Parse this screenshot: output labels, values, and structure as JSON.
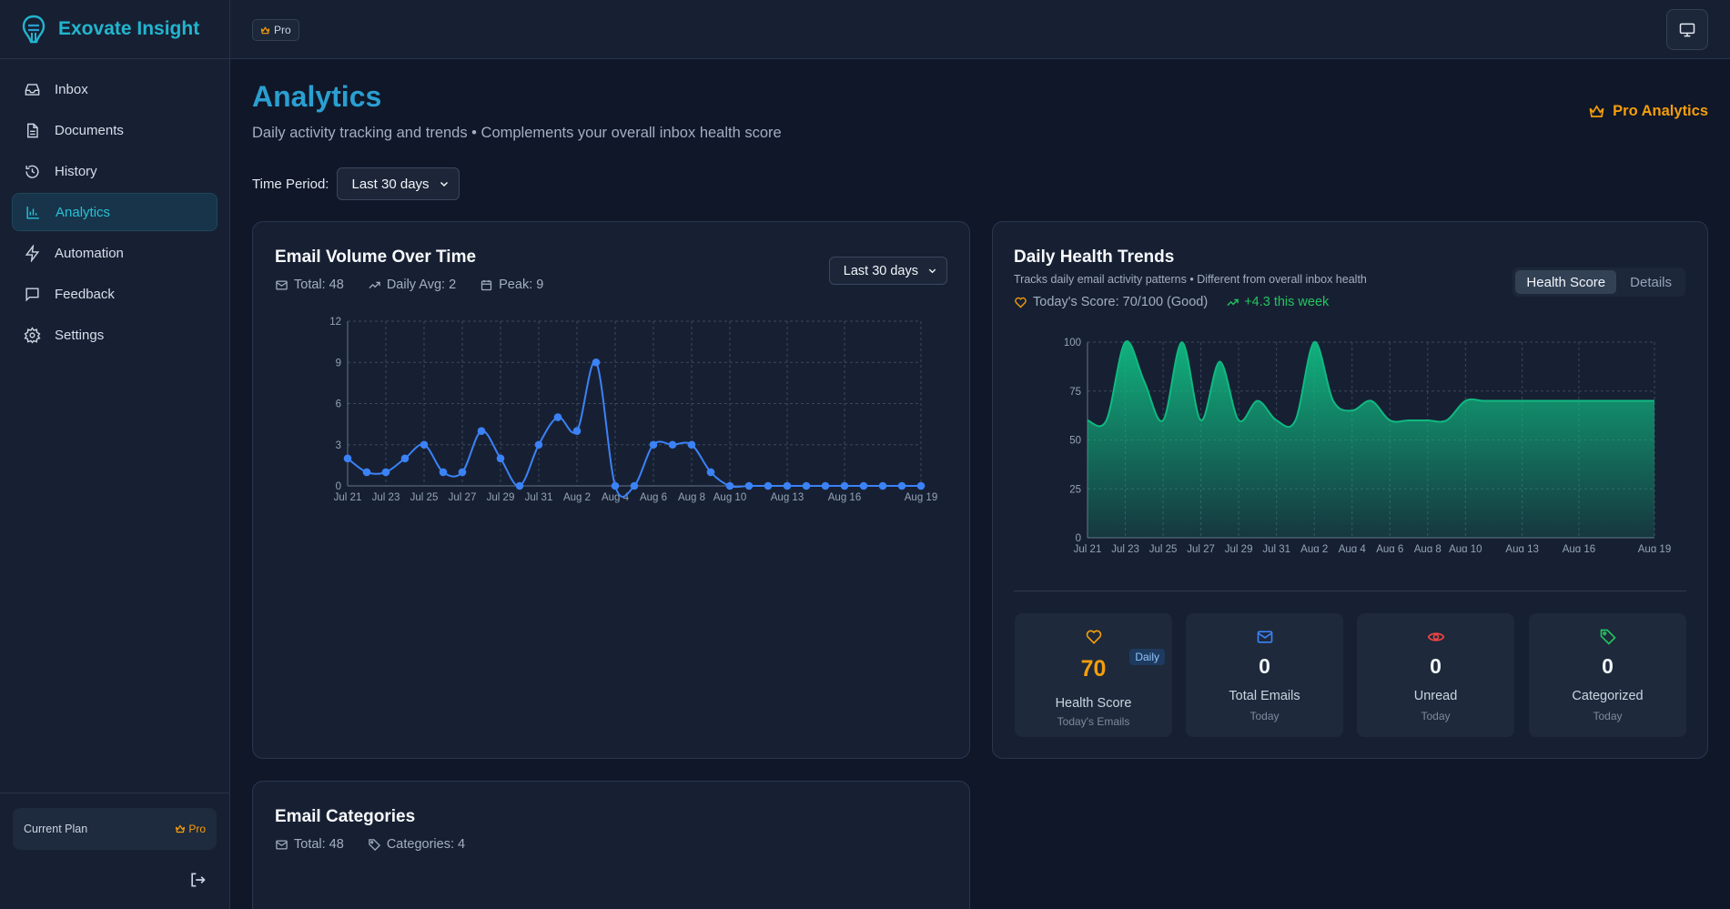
{
  "app": {
    "name": "Exovate Insight"
  },
  "sidebar": {
    "items": [
      {
        "label": "Inbox",
        "icon": "inbox-icon"
      },
      {
        "label": "Documents",
        "icon": "document-icon"
      },
      {
        "label": "History",
        "icon": "history-icon"
      },
      {
        "label": "Analytics",
        "icon": "bar-chart-icon",
        "active": true
      },
      {
        "label": "Automation",
        "icon": "lightning-icon"
      },
      {
        "label": "Feedback",
        "icon": "message-icon"
      },
      {
        "label": "Settings",
        "icon": "gear-icon"
      }
    ],
    "plan_label": "Current Plan",
    "plan_value": "Pro"
  },
  "topbar": {
    "badge": "Pro"
  },
  "header": {
    "title": "Analytics",
    "subtitle": "Daily activity tracking and trends • Complements your overall inbox health score",
    "pro_label": "Pro Analytics"
  },
  "filters": {
    "label": "Time Period:",
    "value": "Last 30 days"
  },
  "volume_card": {
    "title": "Email Volume Over Time",
    "total": "Total: 48",
    "avg": "Daily Avg: 2",
    "peak": "Peak: 9",
    "select_value": "Last 30 days"
  },
  "health_card": {
    "title": "Daily Health Trends",
    "subtitle": "Tracks daily email activity patterns • Different from overall inbox health",
    "score": "Today's Score: 70/100 (Good)",
    "change": "+4.3 this week",
    "tabs": [
      "Health Score",
      "Details"
    ],
    "stats": [
      {
        "value": "70",
        "label": "Health Score",
        "sub": "Today's Emails",
        "badge": "Daily",
        "icon": "heart-icon"
      },
      {
        "value": "0",
        "label": "Total Emails",
        "sub": "Today",
        "icon": "mail-icon"
      },
      {
        "value": "0",
        "label": "Unread",
        "sub": "Today",
        "icon": "eye-icon"
      },
      {
        "value": "0",
        "label": "Categorized",
        "sub": "Today",
        "icon": "tag-icon"
      }
    ]
  },
  "categories_card": {
    "title": "Email Categories",
    "total": "Total: 48",
    "count": "Categories: 4"
  },
  "colors": {
    "accent": "#22b5cf",
    "line": "#3b82f6",
    "area": "#10b981",
    "pro": "#f59e0b"
  },
  "chart_data": [
    {
      "type": "line",
      "title": "Email Volume Over Time",
      "x_labels": [
        "Jul 21",
        "Jul 23",
        "Jul 25",
        "Jul 27",
        "Jul 29",
        "Jul 31",
        "Aug 2",
        "Aug 4",
        "Aug 6",
        "Aug 8",
        "Aug 10",
        "Aug 13",
        "Aug 16",
        "Aug 19"
      ],
      "values": [
        2,
        1,
        1,
        2,
        3,
        1,
        1,
        4,
        2,
        0,
        3,
        5,
        4,
        9,
        0,
        0,
        3,
        3,
        3,
        1,
        0,
        0,
        0,
        0,
        0,
        0,
        0,
        0,
        0,
        0,
        0
      ],
      "ylim": [
        0,
        12
      ],
      "yticks": [
        0,
        3,
        6,
        9,
        12
      ],
      "grid": true
    },
    {
      "type": "area",
      "title": "Daily Health Trends",
      "x_labels": [
        "Jul 21",
        "Jul 23",
        "Jul 25",
        "Jul 27",
        "Jul 29",
        "Jul 31",
        "Aug 2",
        "Aug 4",
        "Aug 6",
        "Aug 8",
        "Aug 10",
        "Aug 13",
        "Aug 16",
        "Aug 19"
      ],
      "values": [
        60,
        60,
        100,
        80,
        60,
        100,
        60,
        90,
        60,
        70,
        60,
        60,
        100,
        70,
        65,
        70,
        60,
        60,
        60,
        60,
        70,
        70,
        70,
        70,
        70,
        70,
        70,
        70,
        70,
        70,
        70
      ],
      "ylim": [
        0,
        100
      ],
      "yticks": [
        0,
        25,
        50,
        75,
        100
      ],
      "grid": true
    }
  ]
}
